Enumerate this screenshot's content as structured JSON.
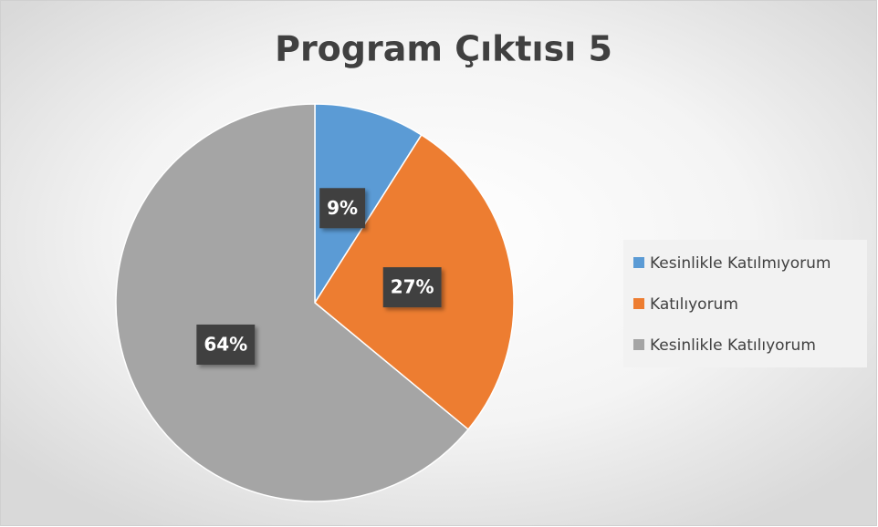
{
  "chart_data": {
    "type": "pie",
    "title": "Program Çıktısı 5",
    "categories": [
      "Kesinlikle Katılmıyorum",
      "Katılıyorum",
      "Kesinlikle Katılıyorum"
    ],
    "values": [
      9,
      27,
      64
    ],
    "value_labels": [
      "9%",
      "27%",
      "64%"
    ],
    "colors": [
      "#5b9bd5",
      "#ed7d31",
      "#a5a5a5"
    ],
    "legend": "right"
  }
}
